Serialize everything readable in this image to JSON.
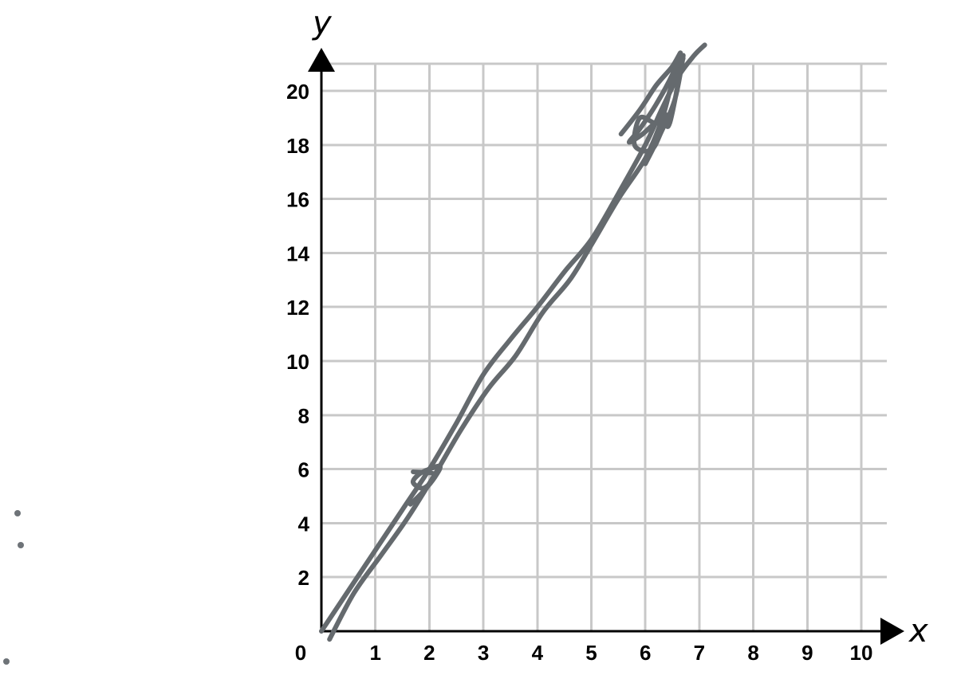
{
  "chart_data": {
    "type": "line",
    "xlabel": "x",
    "ylabel": "y",
    "xlim": [
      0,
      10
    ],
    "ylim": [
      0,
      21
    ],
    "grid": true,
    "x_ticks": [
      {
        "value": 0,
        "label": "0"
      },
      {
        "value": 1,
        "label": "1"
      },
      {
        "value": 2,
        "label": "2"
      },
      {
        "value": 3,
        "label": "3"
      },
      {
        "value": 4,
        "label": "4"
      },
      {
        "value": 5,
        "label": "5"
      },
      {
        "value": 6,
        "label": "6"
      },
      {
        "value": 7,
        "label": "7"
      },
      {
        "value": 8,
        "label": "8"
      },
      {
        "value": 9,
        "label": "9"
      },
      {
        "value": 10,
        "label": "10"
      }
    ],
    "y_ticks": [
      {
        "value": 2,
        "label": "2"
      },
      {
        "value": 4,
        "label": "4"
      },
      {
        "value": 6,
        "label": "6"
      },
      {
        "value": 8,
        "label": "8"
      },
      {
        "value": 10,
        "label": "10"
      },
      {
        "value": 12,
        "label": "12"
      },
      {
        "value": 14,
        "label": "14"
      },
      {
        "value": 16,
        "label": "16"
      },
      {
        "value": 18,
        "label": "18"
      },
      {
        "value": 20,
        "label": "20"
      }
    ],
    "series": [
      {
        "color": "#656a6e",
        "x": [
          0.0,
          0.5,
          1.0,
          1.5,
          2.0,
          2.5,
          3.0,
          3.5,
          4.0,
          4.5,
          5.0,
          5.5,
          6.0,
          6.3,
          6.6,
          6.9,
          7.1
        ],
        "y": [
          0.0,
          1.5,
          3.0,
          4.5,
          6.0,
          7.7,
          9.5,
          10.8,
          12.0,
          13.3,
          14.5,
          16.2,
          18.0,
          19.3,
          20.5,
          21.3,
          21.7
        ]
      },
      {
        "color": "#656a6e",
        "x": [
          0.15,
          0.6,
          1.1,
          1.6,
          2.1,
          2.6,
          3.1,
          3.6,
          4.1,
          4.6,
          5.0,
          5.5,
          6.0,
          6.3,
          6.5,
          6.7
        ],
        "y": [
          -0.3,
          1.4,
          2.8,
          4.2,
          5.8,
          7.5,
          9.0,
          10.2,
          11.8,
          13.0,
          14.3,
          16.0,
          17.5,
          18.9,
          20.3,
          21.2
        ]
      },
      {
        "color": "#656a6e",
        "x": [
          1.65,
          1.9,
          2.1,
          2.2,
          2.0,
          1.8,
          1.7,
          1.9,
          2.1,
          1.7
        ],
        "y": [
          4.7,
          5.2,
          5.7,
          6.1,
          6.0,
          5.8,
          5.5,
          5.3,
          5.8,
          5.9
        ]
      },
      {
        "color": "#656a6e",
        "x": [
          5.55,
          5.9,
          6.2,
          6.5,
          6.65,
          6.5,
          6.2,
          5.9,
          5.7,
          5.95,
          6.3,
          6.45,
          6.7,
          6.55,
          6.3,
          6.1,
          5.8,
          5.9,
          6.2,
          6.4,
          6.25,
          6.0
        ],
        "y": [
          18.4,
          19.3,
          20.2,
          20.9,
          21.4,
          20.6,
          19.5,
          18.6,
          18.1,
          18.4,
          19.0,
          18.8,
          21.3,
          19.7,
          18.5,
          17.8,
          18.0,
          19.0,
          18.8,
          19.1,
          18.3,
          17.3
        ]
      }
    ]
  },
  "stray_marks": {
    "color": "#6e7378",
    "count": 3
  }
}
